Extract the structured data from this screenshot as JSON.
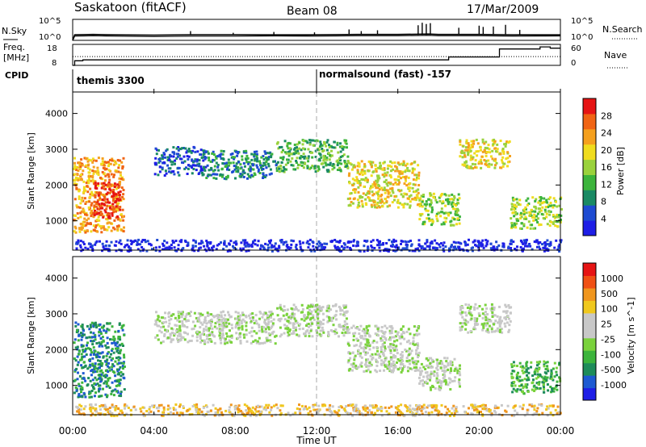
{
  "header": {
    "title": "Saskatoon (fitACF)",
    "beam": "Beam 08",
    "date": "17/Mar/2009"
  },
  "noise_panel": {
    "left_label": "N.Sky",
    "right_label": "N.Search",
    "left_ticks": [
      "10^5",
      "10^0"
    ],
    "right_ticks": [
      "10^5",
      "10^0"
    ]
  },
  "freq_panel": {
    "left_label_1": "Freq.",
    "left_label_2": "[MHz]",
    "right_label": "Nave",
    "left_ticks": [
      "18",
      "8"
    ],
    "right_ticks": [
      "60",
      "0"
    ]
  },
  "cpid": {
    "label": "CPID",
    "programs": [
      {
        "name": "themis 3300",
        "start_hour": 0
      },
      {
        "name": "normalsound (fast) -157",
        "start_hour": 12
      }
    ]
  },
  "colors": {
    "power_scale": [
      "#1e1ee6",
      "#1e4bd2",
      "#1a8a64",
      "#3cb43c",
      "#9ad23c",
      "#f0dc1e",
      "#f5a01e",
      "#f06414",
      "#e61414"
    ],
    "velocity_scale": [
      "#1e1ee6",
      "#1e5ad2",
      "#1e8c5a",
      "#3cb43c",
      "#7ad23c",
      "#c8c8c8",
      "#c8c8c8",
      "#f0c81e",
      "#f0961e",
      "#f05014",
      "#e61414"
    ],
    "ground_scatter": "#b4b4b4"
  },
  "chart_data": [
    {
      "type": "line",
      "name": "noise",
      "x_hours": [
        0,
        0.1,
        1,
        2,
        4,
        6,
        8,
        10,
        12,
        14,
        16,
        17.5,
        18,
        20,
        22,
        24
      ],
      "sky_log": [
        0,
        1.0,
        1.1,
        1.0,
        0.9,
        1.0,
        1.0,
        1.05,
        1.0,
        1.1,
        1.1,
        1.2,
        1.1,
        1.1,
        1.0,
        1.05
      ],
      "search_log": [
        0,
        1.3,
        1.4,
        1.3,
        1.25,
        1.35,
        1.35,
        1.3,
        1.3,
        1.4,
        1.4,
        1.5,
        1.4,
        1.4,
        1.3,
        1.3
      ],
      "spikes_hours": [
        5.8,
        7.9,
        9.9,
        11.9,
        13.6,
        14.2,
        15.0,
        17.0,
        17.2,
        17.4,
        17.6,
        19.0,
        20.0,
        20.2,
        20.7,
        21.3,
        22.0
      ],
      "spikes_log": [
        2.2,
        1.8,
        2.0,
        1.9,
        2.6,
        2.2,
        2.4,
        3.6,
        4.2,
        3.9,
        4.1,
        3.0,
        3.5,
        3.2,
        3.3,
        3.7,
        2.5
      ],
      "ylim": [
        0,
        5
      ]
    },
    {
      "type": "line",
      "name": "frequency",
      "x_hours": [
        0,
        0.1,
        0.5,
        2,
        4,
        8,
        12,
        14,
        17,
        18,
        18.5,
        19,
        21,
        21.5,
        23,
        23.5,
        24
      ],
      "freq_mhz": [
        8,
        10.2,
        10.6,
        10.6,
        10.6,
        10.6,
        10.6,
        10.6,
        10.6,
        10.6,
        12.0,
        12.0,
        15.8,
        15.8,
        16.8,
        16.2,
        16.2
      ],
      "nave_x_hours": [
        0,
        24
      ],
      "nave": [
        25,
        25
      ],
      "ylim": [
        8,
        18
      ],
      "nave_lim": [
        0,
        60
      ]
    },
    {
      "type": "heatmap",
      "name": "power",
      "ylabel": "Slant Range [km]",
      "y_ticks": [
        1000,
        2000,
        3000,
        4000
      ],
      "ylim": [
        180,
        4600
      ],
      "colorbar_label": "Power [dB]",
      "colorbar_ticks": [
        "4",
        "8",
        "12",
        "16",
        "20",
        "24",
        "28"
      ],
      "regions": [
        {
          "x0": 0.0,
          "x1": 2.5,
          "y0": 700,
          "y1": 2800,
          "level": 6
        },
        {
          "x0": 1.0,
          "x1": 2.3,
          "y0": 1100,
          "y1": 2100,
          "level": 8
        },
        {
          "x0": 4.0,
          "x1": 6.5,
          "y0": 2300,
          "y1": 3100,
          "level": 1
        },
        {
          "x0": 6.5,
          "x1": 10.0,
          "y0": 2200,
          "y1": 3000,
          "level": 2
        },
        {
          "x0": 10.0,
          "x1": 13.5,
          "y0": 2400,
          "y1": 3300,
          "level": 3
        },
        {
          "x0": 13.5,
          "x1": 17.0,
          "y0": 1400,
          "y1": 2700,
          "level": 5
        },
        {
          "x0": 17.0,
          "x1": 19.0,
          "y0": 900,
          "y1": 1800,
          "level": 4
        },
        {
          "x0": 19.0,
          "x1": 21.5,
          "y0": 2500,
          "y1": 3300,
          "level": 5
        },
        {
          "x0": 21.5,
          "x1": 24.0,
          "y0": 800,
          "y1": 1700,
          "level": 4
        },
        {
          "x0": 0.0,
          "x1": 24.0,
          "y0": 180,
          "y1": 500,
          "level": 0
        }
      ]
    },
    {
      "type": "heatmap",
      "name": "velocity",
      "ylabel": "Slant Range [km]",
      "xlabel": "Time UT",
      "x_ticks": [
        "00:00",
        "04:00",
        "08:00",
        "12:00",
        "16:00",
        "20:00",
        "00:00"
      ],
      "y_ticks": [
        1000,
        2000,
        3000,
        4000
      ],
      "ylim": [
        180,
        4600
      ],
      "colorbar_label": "Velocity [m s^-1]",
      "colorbar_ticks": [
        "1000",
        "500",
        "100",
        "25",
        "-25",
        "-100",
        "-500",
        "-1000"
      ],
      "regions": [
        {
          "x0": 0.0,
          "x1": 2.5,
          "y0": 700,
          "y1": 2800,
          "level": 2
        },
        {
          "x0": 4.0,
          "x1": 10.0,
          "y0": 2200,
          "y1": 3100,
          "level": 5
        },
        {
          "x0": 10.0,
          "x1": 13.5,
          "y0": 2400,
          "y1": 3300,
          "level": 5
        },
        {
          "x0": 13.5,
          "x1": 17.0,
          "y0": 1400,
          "y1": 2700,
          "level": 5
        },
        {
          "x0": 17.0,
          "x1": 19.0,
          "y0": 900,
          "y1": 1800,
          "level": 5
        },
        {
          "x0": 19.0,
          "x1": 21.5,
          "y0": 2500,
          "y1": 3300,
          "level": 5
        },
        {
          "x0": 21.5,
          "x1": 24.0,
          "y0": 800,
          "y1": 1700,
          "level": 3
        },
        {
          "x0": 0.0,
          "x1": 24.0,
          "y0": 180,
          "y1": 500,
          "level": 7
        }
      ]
    }
  ]
}
